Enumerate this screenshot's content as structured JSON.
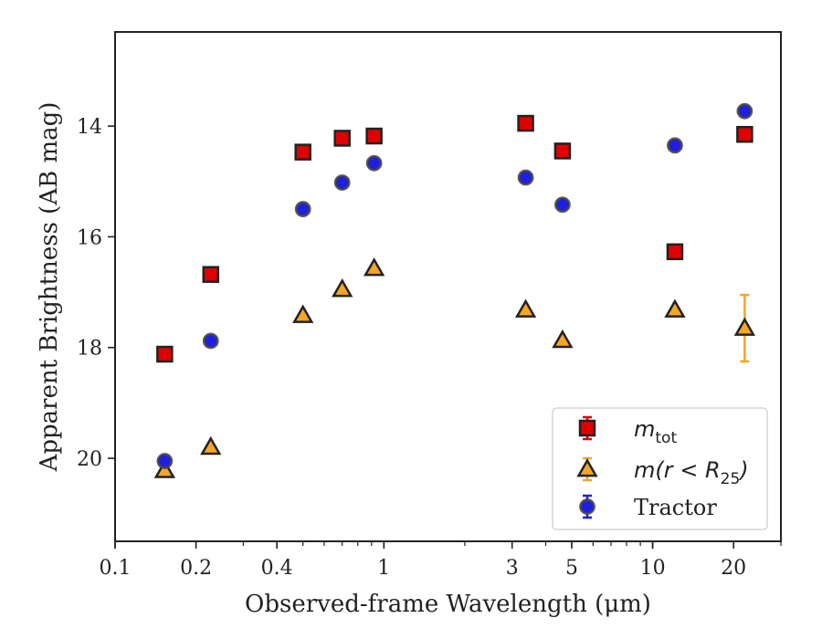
{
  "chart_data": {
    "type": "scatter",
    "xlabel": "Observed-frame Wavelength (μm)",
    "ylabel": "Apparent Brightness (AB mag)",
    "xscale": "log",
    "xlim": [
      0.1,
      30
    ],
    "ylim": [
      21.5,
      12.3
    ],
    "y_inverted": true,
    "grid": false,
    "legend_position": "lower-right",
    "x_ticks": [
      {
        "value": 0.1,
        "label": "0.1"
      },
      {
        "value": 0.2,
        "label": "0.2"
      },
      {
        "value": 0.4,
        "label": "0.4"
      },
      {
        "value": 1,
        "label": "1"
      },
      {
        "value": 3,
        "label": "3"
      },
      {
        "value": 5,
        "label": "5"
      },
      {
        "value": 10,
        "label": "10"
      },
      {
        "value": 20,
        "label": "20"
      }
    ],
    "y_ticks": [
      {
        "value": 14,
        "label": "14"
      },
      {
        "value": 16,
        "label": "16"
      },
      {
        "value": 18,
        "label": "18"
      },
      {
        "value": 20,
        "label": "20"
      }
    ],
    "series": [
      {
        "name": "m_tot",
        "legend_label": "m",
        "legend_subscript": "tot",
        "marker": "square",
        "fill": "#e00000",
        "edge": "#222222",
        "error_color": "#e00000",
        "points": [
          {
            "x": 0.153,
            "y": 18.12,
            "err": 0.05
          },
          {
            "x": 0.227,
            "y": 16.68,
            "err": 0.05
          },
          {
            "x": 0.5,
            "y": 14.47,
            "err": 0.05
          },
          {
            "x": 0.7,
            "y": 14.22,
            "err": 0.05
          },
          {
            "x": 0.92,
            "y": 14.18,
            "err": 0.05
          },
          {
            "x": 3.37,
            "y": 13.95,
            "err": 0.05
          },
          {
            "x": 4.62,
            "y": 14.45,
            "err": 0.05
          },
          {
            "x": 12.1,
            "y": 16.27,
            "err": 0.05
          },
          {
            "x": 22.0,
            "y": 14.15,
            "err": 0.05
          }
        ]
      },
      {
        "name": "m(r < R25)",
        "legend_label": "m(r < R",
        "legend_subscript": "25",
        "legend_suffix": ")",
        "marker": "triangle",
        "fill": "#f5a623",
        "edge": "#222222",
        "error_color": "#f5a623",
        "points": [
          {
            "x": 0.153,
            "y": 20.22,
            "err": 0.05
          },
          {
            "x": 0.227,
            "y": 19.8,
            "err": 0.05
          },
          {
            "x": 0.5,
            "y": 17.42,
            "err": 0.05
          },
          {
            "x": 0.7,
            "y": 16.95,
            "err": 0.05
          },
          {
            "x": 0.92,
            "y": 16.57,
            "err": 0.05
          },
          {
            "x": 3.37,
            "y": 17.32,
            "err": 0.05
          },
          {
            "x": 4.62,
            "y": 17.87,
            "err": 0.05
          },
          {
            "x": 12.1,
            "y": 17.32,
            "err": 0.1
          },
          {
            "x": 22.0,
            "y": 17.65,
            "err": 0.6
          }
        ]
      },
      {
        "name": "Tractor",
        "legend_label": "Tractor",
        "marker": "circle",
        "fill": "#1f1fe0",
        "edge": "#444444",
        "error_color": "#1f1fe0",
        "points": [
          {
            "x": 0.153,
            "y": 20.05,
            "err": 0.05
          },
          {
            "x": 0.227,
            "y": 17.88,
            "err": 0.05
          },
          {
            "x": 0.5,
            "y": 15.5,
            "err": 0.05
          },
          {
            "x": 0.7,
            "y": 15.02,
            "err": 0.05
          },
          {
            "x": 0.92,
            "y": 14.67,
            "err": 0.05
          },
          {
            "x": 3.37,
            "y": 14.93,
            "err": 0.05
          },
          {
            "x": 4.62,
            "y": 15.42,
            "err": 0.05
          },
          {
            "x": 12.1,
            "y": 14.35,
            "err": 0.05
          },
          {
            "x": 22.0,
            "y": 13.73,
            "err": 0.05
          }
        ]
      }
    ]
  }
}
